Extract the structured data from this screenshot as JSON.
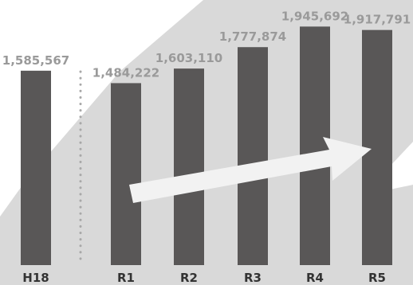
{
  "chart_data": {
    "type": "bar",
    "categories": [
      "H18",
      "R1",
      "R2",
      "R3",
      "R4",
      "R5"
    ],
    "values": [
      1585567,
      1484222,
      1603110,
      1777874,
      1945692,
      1917791
    ],
    "value_labels": [
      "1,585,567",
      "1,484,222",
      "1,603,110",
      "1,777,874",
      "1,945,692",
      "1,917,791"
    ],
    "title": "",
    "xlabel": "",
    "ylabel": "",
    "ylim": [
      0,
      2000000
    ],
    "grid": false,
    "legend": "none",
    "separator_after_category": "H18",
    "trend_arrow": "up-right",
    "colors": {
      "bar": "#595757",
      "background_shape": "#d9d9d9",
      "arrow": "#f2f2f2",
      "value_label": "#9a9a9a",
      "category_label": "#333333",
      "separator": "#a8a8a8"
    }
  }
}
